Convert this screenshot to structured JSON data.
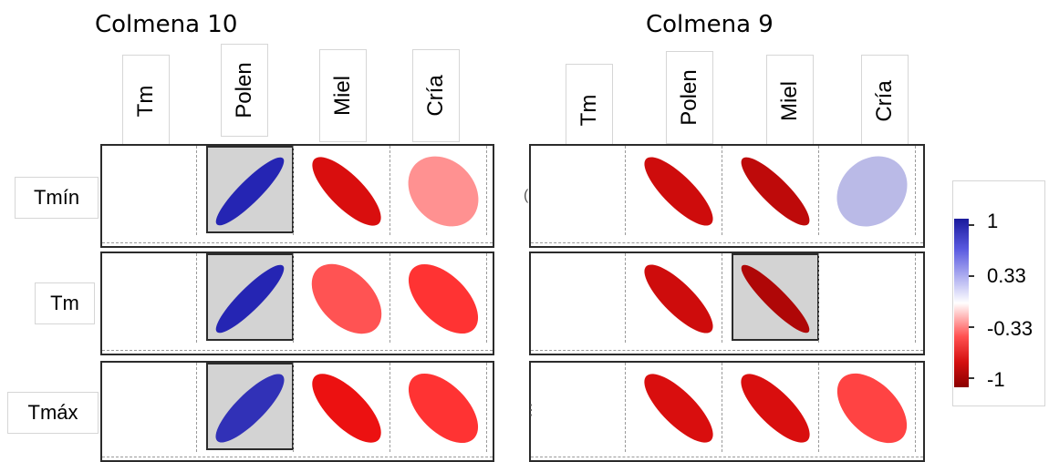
{
  "chart_data": [
    {
      "type": "heatmap",
      "title": "Colmena 10",
      "columns": [
        "Tm",
        "Polen",
        "Miel",
        "Cría"
      ],
      "rows": [
        "Tmín",
        "Tm",
        "Tmáx"
      ],
      "values": [
        [
          0,
          0.95,
          -0.85,
          -0.35
        ],
        [
          0,
          0.95,
          -0.55,
          -0.65
        ],
        [
          0,
          0.9,
          -0.8,
          -0.65
        ]
      ],
      "highlighted": [
        [
          false,
          true,
          false,
          false
        ],
        [
          false,
          true,
          false,
          false
        ],
        [
          false,
          true,
          false,
          false
        ]
      ]
    },
    {
      "type": "heatmap",
      "title": "Colmena 9",
      "columns": [
        "Tm",
        "Polen",
        "Miel",
        "Cría"
      ],
      "rows": [
        "Tmín",
        "Tm",
        "Tmáx"
      ],
      "values": [
        [
          0,
          -0.88,
          -0.92,
          0.3
        ],
        [
          0,
          -0.88,
          -0.96,
          0
        ],
        [
          0,
          -0.85,
          -0.85,
          -0.6
        ]
      ],
      "highlighted": [
        [
          false,
          false,
          false,
          false
        ],
        [
          false,
          false,
          true,
          false
        ],
        [
          false,
          false,
          false,
          false
        ]
      ]
    }
  ],
  "legend": {
    "ticks": [
      "1",
      "0.33",
      "-0.33",
      "-1"
    ],
    "colors": {
      "high": "#1a1a9c",
      "mid": "#ffffff",
      "low": "#8b0000"
    }
  }
}
